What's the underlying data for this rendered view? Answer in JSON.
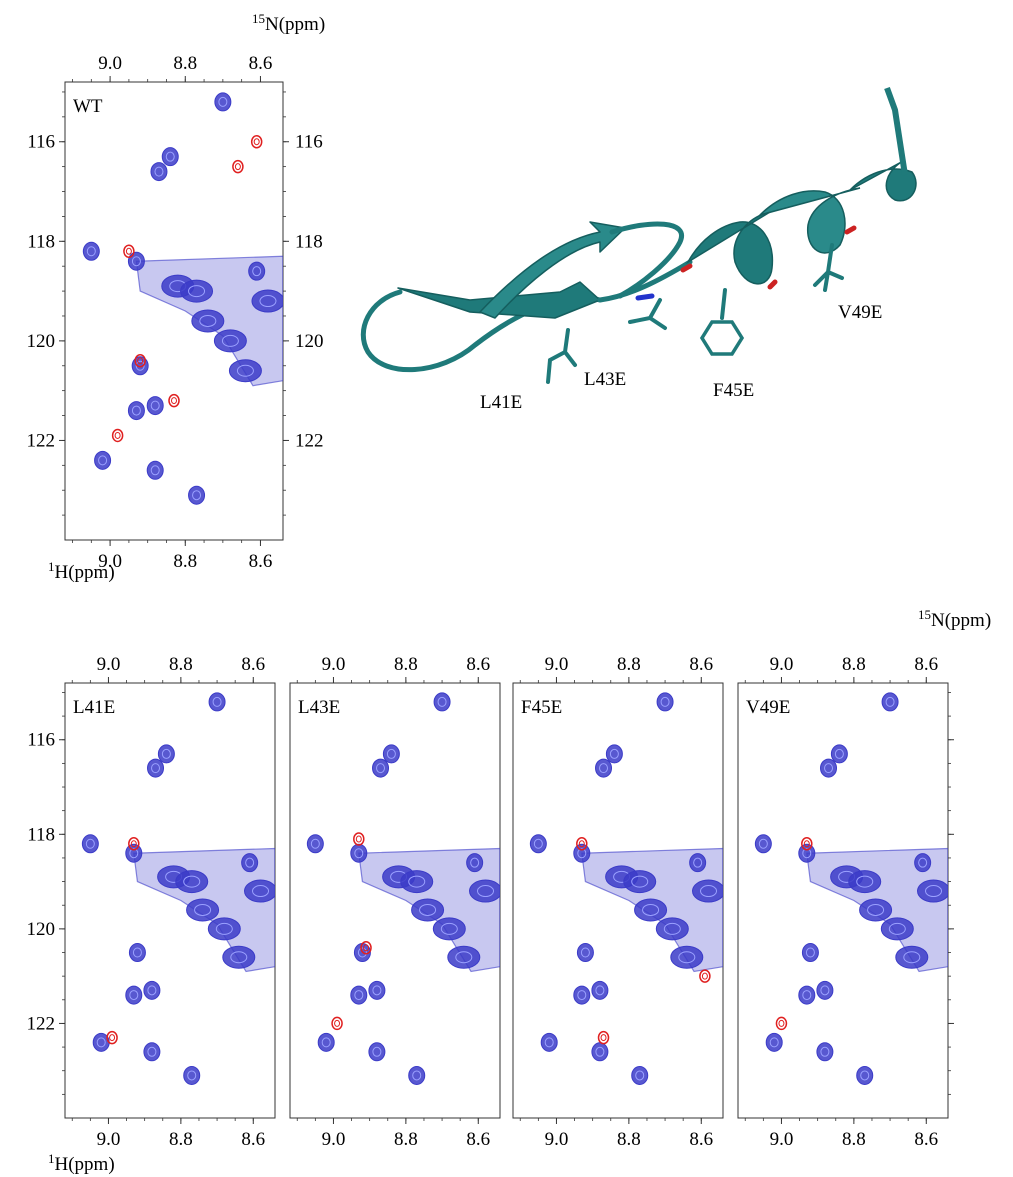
{
  "colors": {
    "reference": "#3b3bc8",
    "mutant": "#e02020",
    "helix": "#1f7a7a",
    "axis": "#333333"
  },
  "axis_labels": {
    "n15_sup": "15",
    "n15_text": "N(ppm)",
    "h1_sup": "1",
    "h1_text": "H(ppm)"
  },
  "structure_labels": [
    "L41E",
    "L43E",
    "F45E",
    "V49E"
  ],
  "chart_data": [
    {
      "type": "scatter",
      "title": "WT",
      "xlabel": "1H(ppm)",
      "ylabel": "15N(ppm)",
      "xlim": [
        9.12,
        8.54
      ],
      "ylim": [
        124.0,
        114.8
      ],
      "xticks": [
        9.0,
        8.8,
        8.6
      ],
      "yticks": [
        116,
        118,
        120,
        122
      ],
      "series": [
        {
          "x": [
            8.7,
            8.87,
            8.84,
            9.05,
            8.93,
            8.92,
            8.93,
            8.88,
            9.02,
            8.88,
            8.77,
            8.82,
            8.77,
            8.74,
            8.68,
            8.64,
            8.61,
            8.58
          ]
        },
        {
          "y": [
            115.2,
            116.6,
            116.3,
            118.2,
            118.4,
            120.5,
            121.4,
            121.3,
            122.4,
            122.6,
            123.1,
            118.9,
            119.0,
            119.6,
            120.0,
            120.6,
            118.6,
            119.2
          ]
        },
        {
          "x": [
            8.61,
            8.66,
            8.95,
            8.98,
            8.92,
            8.83
          ]
        },
        {
          "y": [
            116.0,
            116.5,
            118.2,
            121.9,
            120.4,
            121.2
          ]
        }
      ]
    },
    {
      "type": "scatter",
      "title": "L41E",
      "xlabel": "1H(ppm)",
      "xlim": [
        9.12,
        8.54
      ],
      "ylim": [
        124.0,
        114.8
      ],
      "xticks": [
        9.0,
        8.8,
        8.6
      ],
      "yticks": [
        116,
        118,
        120,
        122
      ],
      "series": [
        {
          "x": [
            8.7,
            8.87,
            8.84,
            9.05,
            8.93,
            8.92,
            8.93,
            8.88,
            9.02,
            8.88,
            8.77,
            8.82,
            8.77,
            8.74,
            8.68,
            8.64,
            8.61,
            8.58
          ]
        },
        {
          "y": [
            115.2,
            116.6,
            116.3,
            118.2,
            118.4,
            120.5,
            121.4,
            121.3,
            122.4,
            122.6,
            123.1,
            118.9,
            119.0,
            119.6,
            120.0,
            120.6,
            118.6,
            119.2
          ]
        },
        {
          "x": [
            8.93,
            8.99
          ]
        },
        {
          "y": [
            118.2,
            122.3
          ]
        }
      ]
    },
    {
      "type": "scatter",
      "title": "L43E",
      "xlabel": "1H(ppm)",
      "xlim": [
        9.12,
        8.54
      ],
      "ylim": [
        124.0,
        114.8
      ],
      "xticks": [
        9.0,
        8.8,
        8.6
      ],
      "yticks": [
        116,
        118,
        120,
        122
      ],
      "series": [
        {
          "x": [
            8.7,
            8.87,
            8.84,
            9.05,
            8.93,
            8.92,
            8.93,
            8.88,
            9.02,
            8.88,
            8.77,
            8.82,
            8.77,
            8.74,
            8.68,
            8.64,
            8.61,
            8.58
          ]
        },
        {
          "y": [
            115.2,
            116.6,
            116.3,
            118.2,
            118.4,
            120.5,
            121.4,
            121.3,
            122.4,
            122.6,
            123.1,
            118.9,
            119.0,
            119.6,
            120.0,
            120.6,
            118.6,
            119.2
          ]
        },
        {
          "x": [
            8.93,
            8.99,
            8.91
          ]
        },
        {
          "y": [
            118.1,
            122.0,
            120.4
          ]
        }
      ]
    },
    {
      "type": "scatter",
      "title": "F45E",
      "xlabel": "1H(ppm)",
      "xlim": [
        9.12,
        8.54
      ],
      "ylim": [
        124.0,
        114.8
      ],
      "xticks": [
        9.0,
        8.8,
        8.6
      ],
      "yticks": [
        116,
        118,
        120,
        122
      ],
      "series": [
        {
          "x": [
            8.7,
            8.87,
            8.84,
            9.05,
            8.93,
            8.92,
            8.93,
            8.88,
            9.02,
            8.88,
            8.77,
            8.82,
            8.77,
            8.74,
            8.68,
            8.64,
            8.61,
            8.58
          ]
        },
        {
          "y": [
            115.2,
            116.6,
            116.3,
            118.2,
            118.4,
            120.5,
            121.4,
            121.3,
            122.4,
            122.6,
            123.1,
            118.9,
            119.0,
            119.6,
            120.0,
            120.6,
            118.6,
            119.2
          ]
        },
        {
          "x": [
            8.93,
            8.87,
            8.59
          ]
        },
        {
          "y": [
            118.2,
            122.3,
            121.0
          ]
        }
      ]
    },
    {
      "type": "scatter",
      "title": "V49E",
      "xlabel": "1H(ppm)",
      "xlim": [
        9.12,
        8.54
      ],
      "ylim": [
        124.0,
        114.8
      ],
      "xticks": [
        9.0,
        8.8,
        8.6
      ],
      "yticks": [
        116,
        118,
        120,
        122
      ],
      "series": [
        {
          "x": [
            8.7,
            8.87,
            8.84,
            9.05,
            8.93,
            8.92,
            8.93,
            8.88,
            9.02,
            8.88,
            8.77,
            8.82,
            8.77,
            8.74,
            8.68,
            8.64,
            8.61,
            8.58
          ]
        },
        {
          "y": [
            115.2,
            116.6,
            116.3,
            118.2,
            118.4,
            120.5,
            121.4,
            121.3,
            122.4,
            122.6,
            123.1,
            118.9,
            119.0,
            119.6,
            120.0,
            120.6,
            118.6,
            119.2
          ]
        },
        {
          "x": [
            8.93,
            9.0
          ]
        },
        {
          "y": [
            118.2,
            122.0
          ]
        }
      ]
    }
  ]
}
